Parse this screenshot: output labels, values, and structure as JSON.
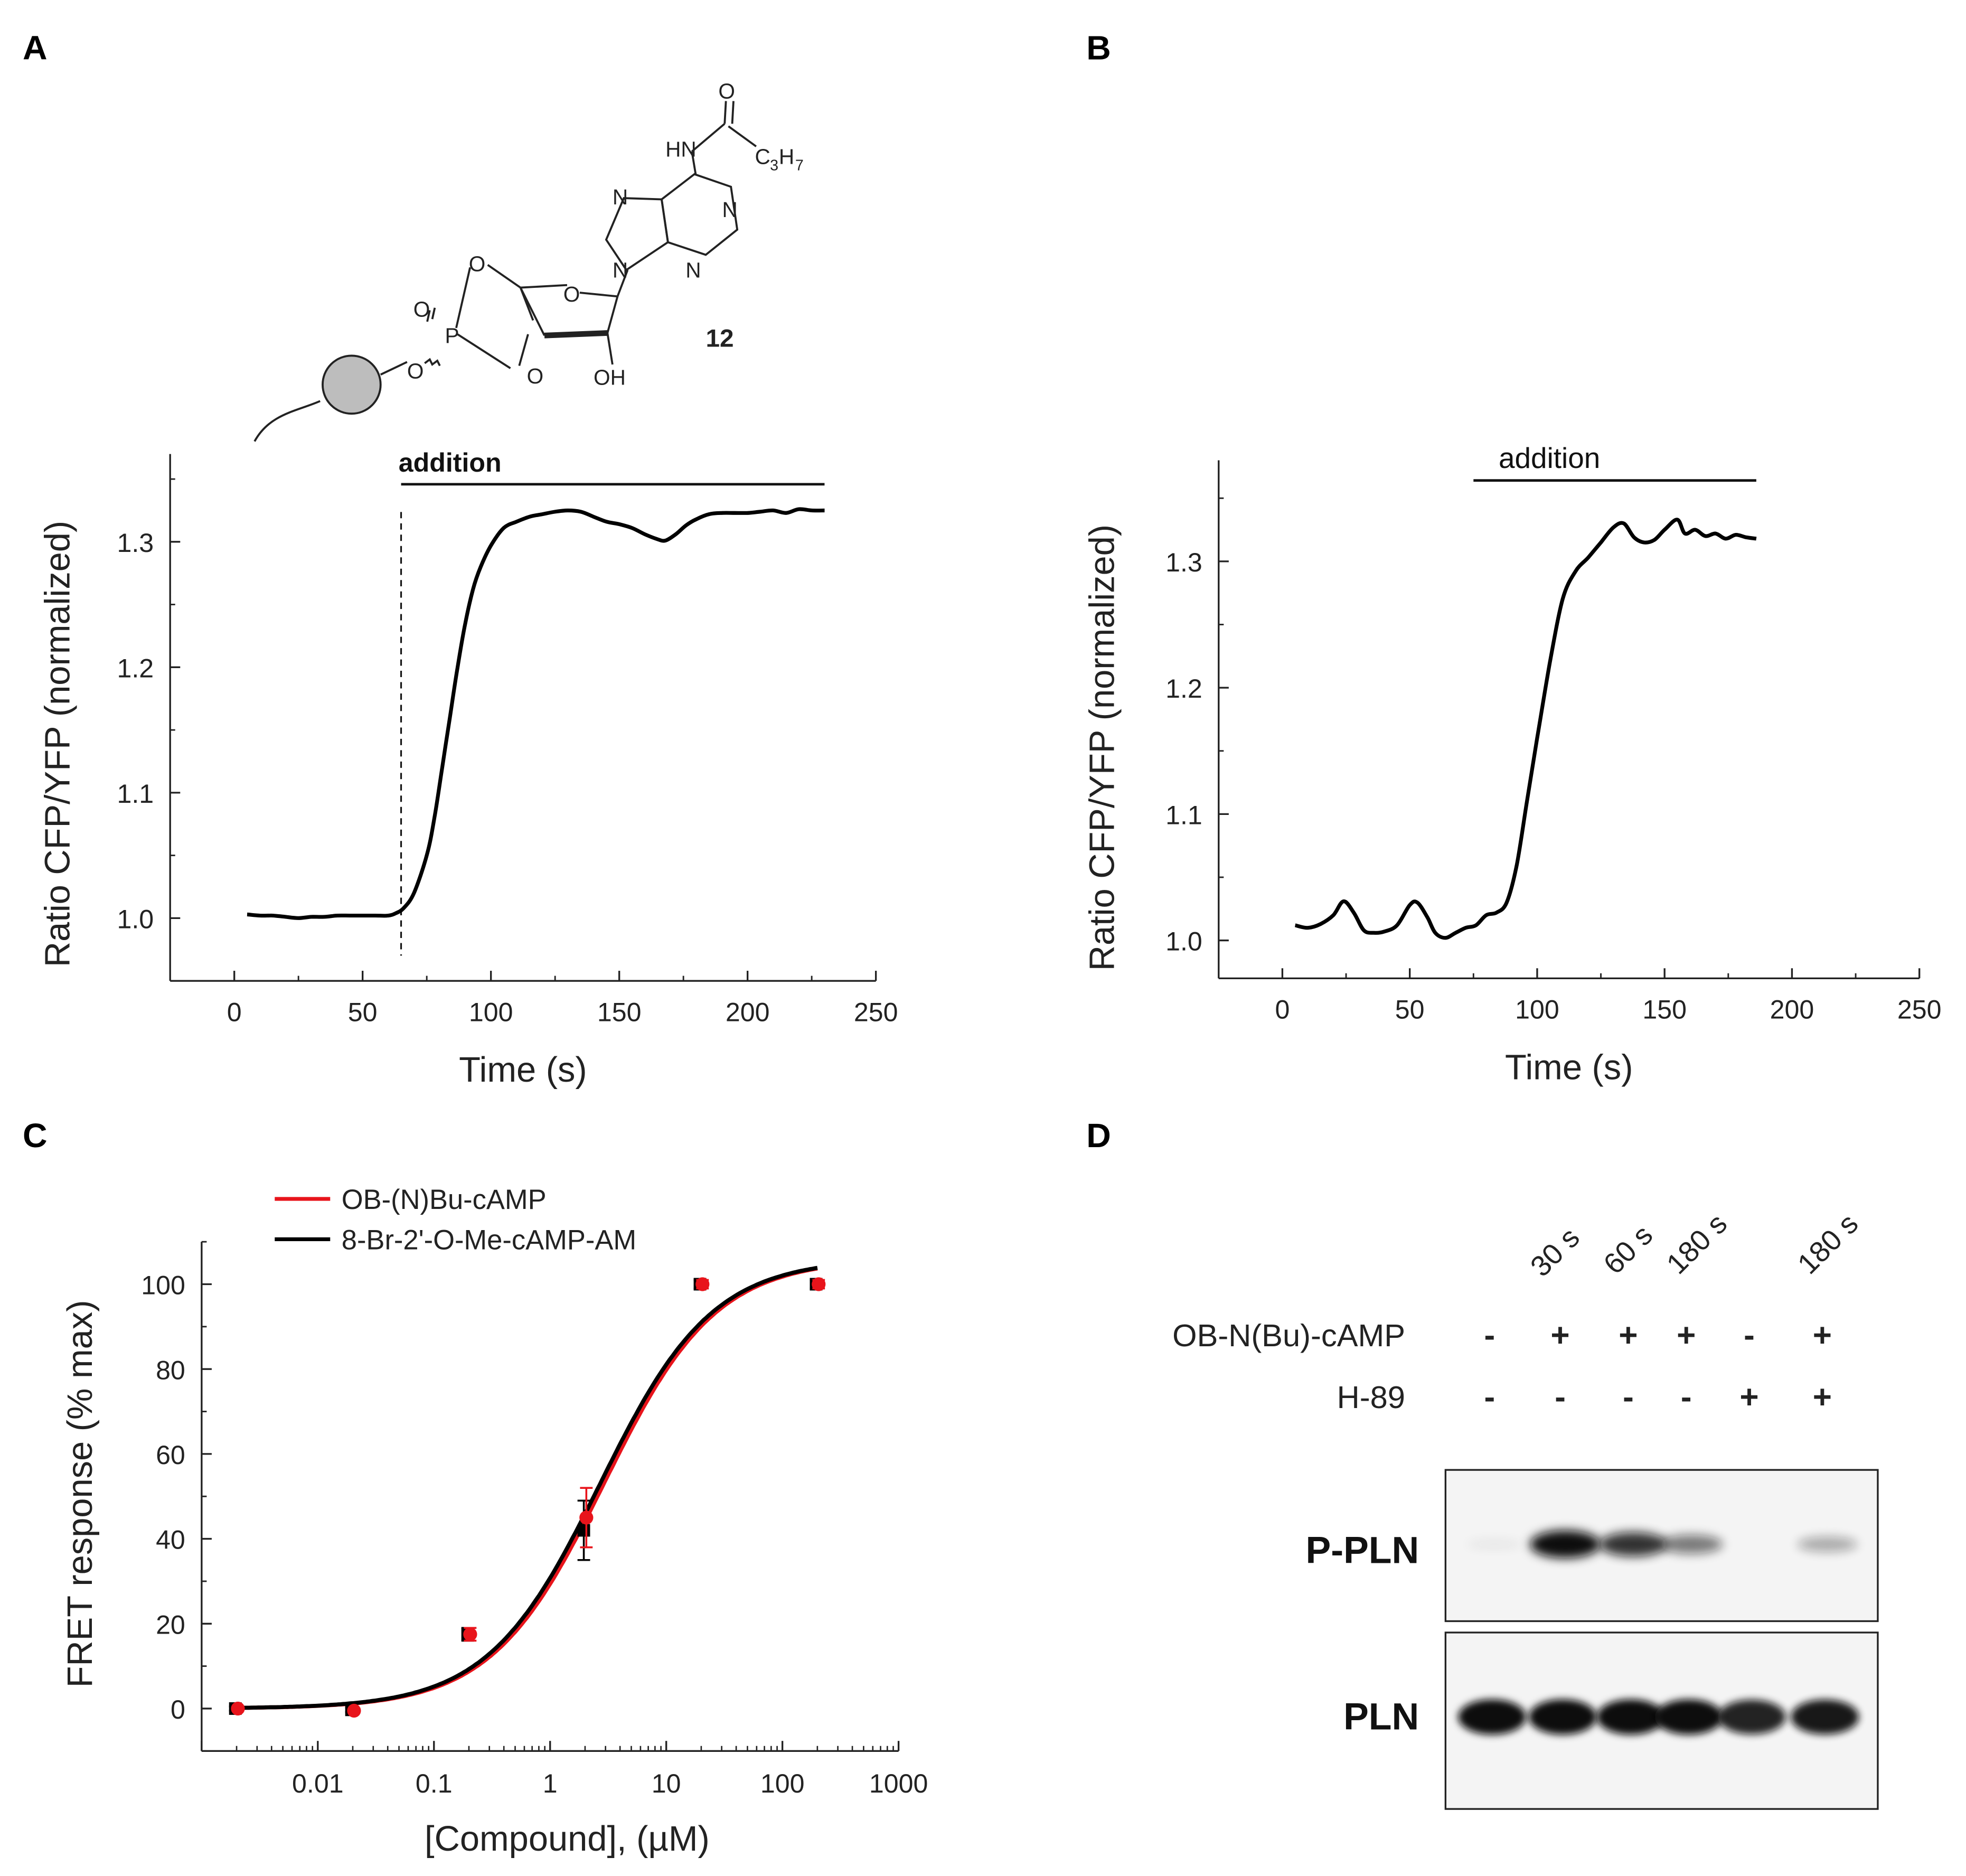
{
  "panels": {
    "A": "A",
    "B": "B",
    "C": "C",
    "D": "D"
  },
  "structure": {
    "compound_number": "12",
    "atoms": {
      "O": "O",
      "N": "N",
      "P": "P",
      "HN": "HN",
      "OH": "OH",
      "C": "C",
      "H": "H",
      "sub3": "3",
      "sub7": "7"
    }
  },
  "colors": {
    "black": "#000000",
    "red": "#e8141b",
    "bead_fill": "#bdbdbd",
    "blot_bg": "#f4f4f4"
  },
  "chart_data": [
    {
      "id": "A",
      "type": "line",
      "xlabel": "Time (s)",
      "ylabel": "Ratio CFP/YFP (normalized)",
      "xlim": [
        -25,
        250
      ],
      "ylim": [
        0.95,
        1.37
      ],
      "xticks": [
        0,
        50,
        100,
        150,
        200,
        250
      ],
      "yticks": [
        1.0,
        1.1,
        1.2,
        1.3
      ],
      "ytick_labels": [
        "1.0",
        "1.1",
        "1.2",
        "1.3"
      ],
      "annotation": {
        "text": "addition",
        "x_start": 65,
        "x_end": 230,
        "dashed_marker_x": 65
      },
      "series": [
        {
          "name": "trace",
          "x": [
            5,
            10,
            15,
            20,
            25,
            30,
            35,
            40,
            45,
            50,
            55,
            60,
            63,
            66,
            70,
            75,
            78,
            81,
            84,
            87,
            90,
            93,
            96,
            100,
            105,
            110,
            115,
            120,
            125,
            130,
            135,
            140,
            145,
            150,
            155,
            160,
            165,
            168,
            172,
            176,
            180,
            185,
            190,
            195,
            200,
            205,
            210,
            215,
            220,
            225,
            230
          ],
          "y": [
            1.003,
            1.002,
            1.002,
            1.001,
            1.0,
            1.001,
            1.001,
            1.002,
            1.002,
            1.002,
            1.002,
            1.002,
            1.004,
            1.008,
            1.02,
            1.05,
            1.08,
            1.12,
            1.16,
            1.2,
            1.235,
            1.262,
            1.28,
            1.297,
            1.311,
            1.316,
            1.32,
            1.322,
            1.324,
            1.325,
            1.324,
            1.32,
            1.316,
            1.314,
            1.311,
            1.306,
            1.302,
            1.301,
            1.306,
            1.313,
            1.318,
            1.322,
            1.323,
            1.323,
            1.323,
            1.324,
            1.325,
            1.323,
            1.326,
            1.325,
            1.325
          ]
        }
      ]
    },
    {
      "id": "B",
      "type": "line",
      "xlabel": "Time (s)",
      "ylabel": "Ratio CFP/YFP (normalized)",
      "xlim": [
        -25,
        250
      ],
      "ylim": [
        0.97,
        1.38
      ],
      "xticks": [
        0,
        50,
        100,
        150,
        200,
        250
      ],
      "yticks": [
        1.0,
        1.1,
        1.2,
        1.3
      ],
      "ytick_labels": [
        "1.0",
        "1.1",
        "1.2",
        "1.3"
      ],
      "annotation": {
        "text": "addition",
        "x_start": 75,
        "x_end": 186
      },
      "series": [
        {
          "name": "trace",
          "x": [
            5,
            10,
            15,
            20,
            24,
            28,
            32,
            36,
            40,
            45,
            50,
            53,
            57,
            60,
            64,
            68,
            72,
            76,
            80,
            84,
            88,
            92,
            96,
            100,
            105,
            110,
            115,
            120,
            125,
            130,
            134,
            138,
            142,
            146,
            150,
            155,
            158,
            162,
            166,
            170,
            174,
            178,
            182,
            186
          ],
          "y": [
            1.012,
            1.01,
            1.013,
            1.02,
            1.031,
            1.022,
            1.008,
            1.006,
            1.007,
            1.012,
            1.028,
            1.03,
            1.018,
            1.006,
            1.002,
            1.006,
            1.01,
            1.012,
            1.02,
            1.022,
            1.03,
            1.06,
            1.11,
            1.16,
            1.22,
            1.27,
            1.292,
            1.303,
            1.315,
            1.327,
            1.33,
            1.319,
            1.315,
            1.317,
            1.325,
            1.333,
            1.322,
            1.325,
            1.32,
            1.322,
            1.318,
            1.321,
            1.319,
            1.318
          ]
        }
      ]
    },
    {
      "id": "C",
      "type": "scatter",
      "xscale": "log",
      "xlabel": "[Compound], (µM)",
      "ylabel": "FRET response (% max)",
      "xlim": [
        0.001,
        1000
      ],
      "ylim": [
        -10,
        110
      ],
      "xticks": [
        0.01,
        0.1,
        1,
        10,
        100,
        1000
      ],
      "xtick_labels": [
        "0.01",
        "0.1",
        "1",
        "10",
        "100",
        "1000"
      ],
      "yticks": [
        0,
        20,
        40,
        60,
        80,
        100
      ],
      "ytick_labels": [
        "0",
        "20",
        "40",
        "60",
        "80",
        "100"
      ],
      "legend_position": "top-left",
      "series": [
        {
          "name": "OB-(N)Bu-cAMP",
          "color": "#e8141b",
          "x": [
            0.002,
            0.02,
            0.2,
            2,
            20,
            200
          ],
          "y": [
            0,
            -0.5,
            17.5,
            45,
            100,
            100
          ],
          "err": [
            0.5,
            0.5,
            1.5,
            7,
            1,
            1
          ],
          "fit": {
            "bottom": 0,
            "top": 106,
            "ec50": 2.9,
            "hill": 0.9
          }
        },
        {
          "name": "8-Br-2'-O-Me-cAMP-AM",
          "color": "#000000",
          "x": [
            0.002,
            0.02,
            0.2,
            2,
            20,
            200
          ],
          "y": [
            0,
            -0.3,
            17.5,
            42,
            100,
            100
          ],
          "err": [
            0.5,
            0.5,
            1.5,
            7,
            1,
            1
          ],
          "fit": {
            "bottom": 0,
            "top": 106,
            "ec50": 2.7,
            "hill": 0.9
          }
        }
      ]
    }
  ],
  "blot": {
    "time_labels": [
      "30 s",
      "60 s",
      "180 s",
      "180 s"
    ],
    "rows": [
      {
        "label": "OB-N(Bu)-cAMP",
        "marks": [
          "-",
          "+",
          "+",
          "+",
          "-",
          "+"
        ]
      },
      {
        "label": "H-89",
        "marks": [
          "-",
          "-",
          "-",
          "-",
          "+",
          "+"
        ]
      }
    ],
    "bands": [
      {
        "label": "P-PLN",
        "intensity": [
          0.05,
          1.0,
          0.8,
          0.5,
          0.02,
          0.3
        ]
      },
      {
        "label": "PLN",
        "intensity": [
          1.0,
          1.0,
          1.0,
          1.0,
          0.9,
          0.95
        ]
      }
    ]
  }
}
